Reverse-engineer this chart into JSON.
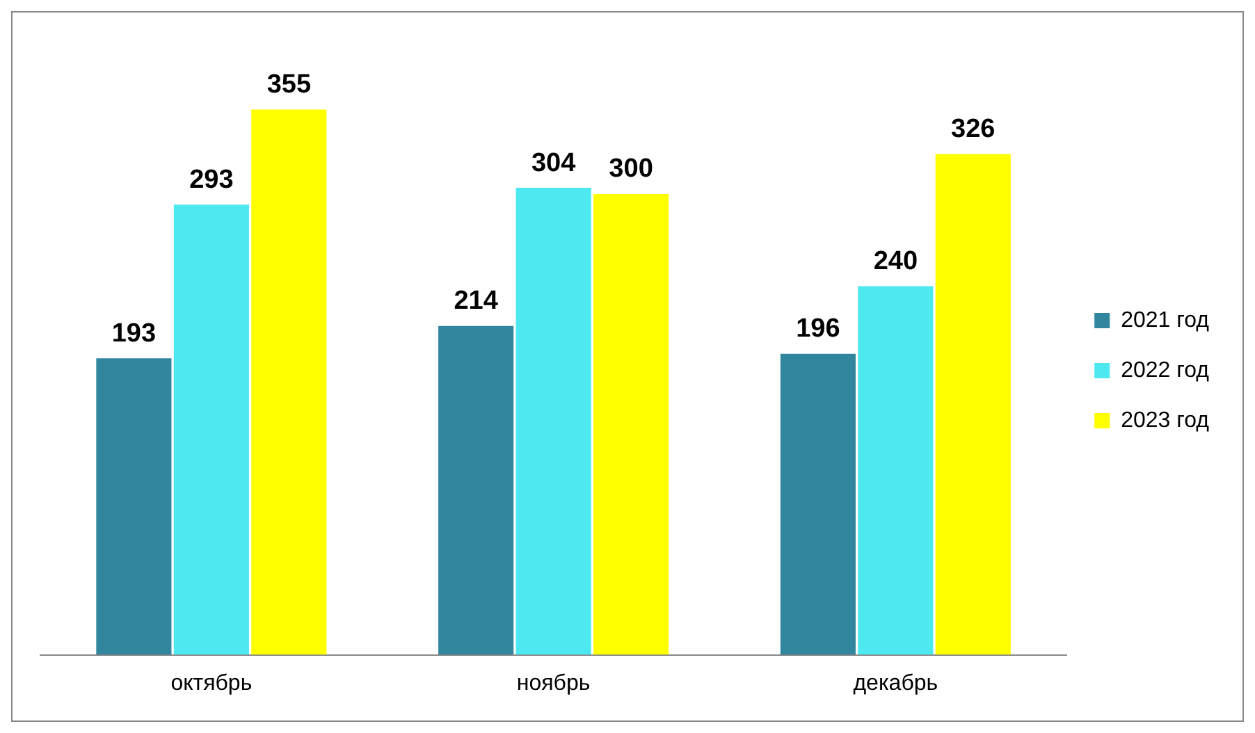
{
  "chart_data": {
    "type": "bar",
    "categories": [
      "октябрь",
      "ноябрь",
      "декабрь"
    ],
    "series": [
      {
        "name": "2021 год",
        "color": "#31859c",
        "values": [
          193,
          214,
          196
        ]
      },
      {
        "name": "2022 год",
        "color": "#4de8f0",
        "values": [
          293,
          304,
          240
        ]
      },
      {
        "name": "2023 год",
        "color": "#ffff00",
        "values": [
          355,
          300,
          326
        ]
      }
    ],
    "data_labels": true,
    "legend": "right"
  }
}
